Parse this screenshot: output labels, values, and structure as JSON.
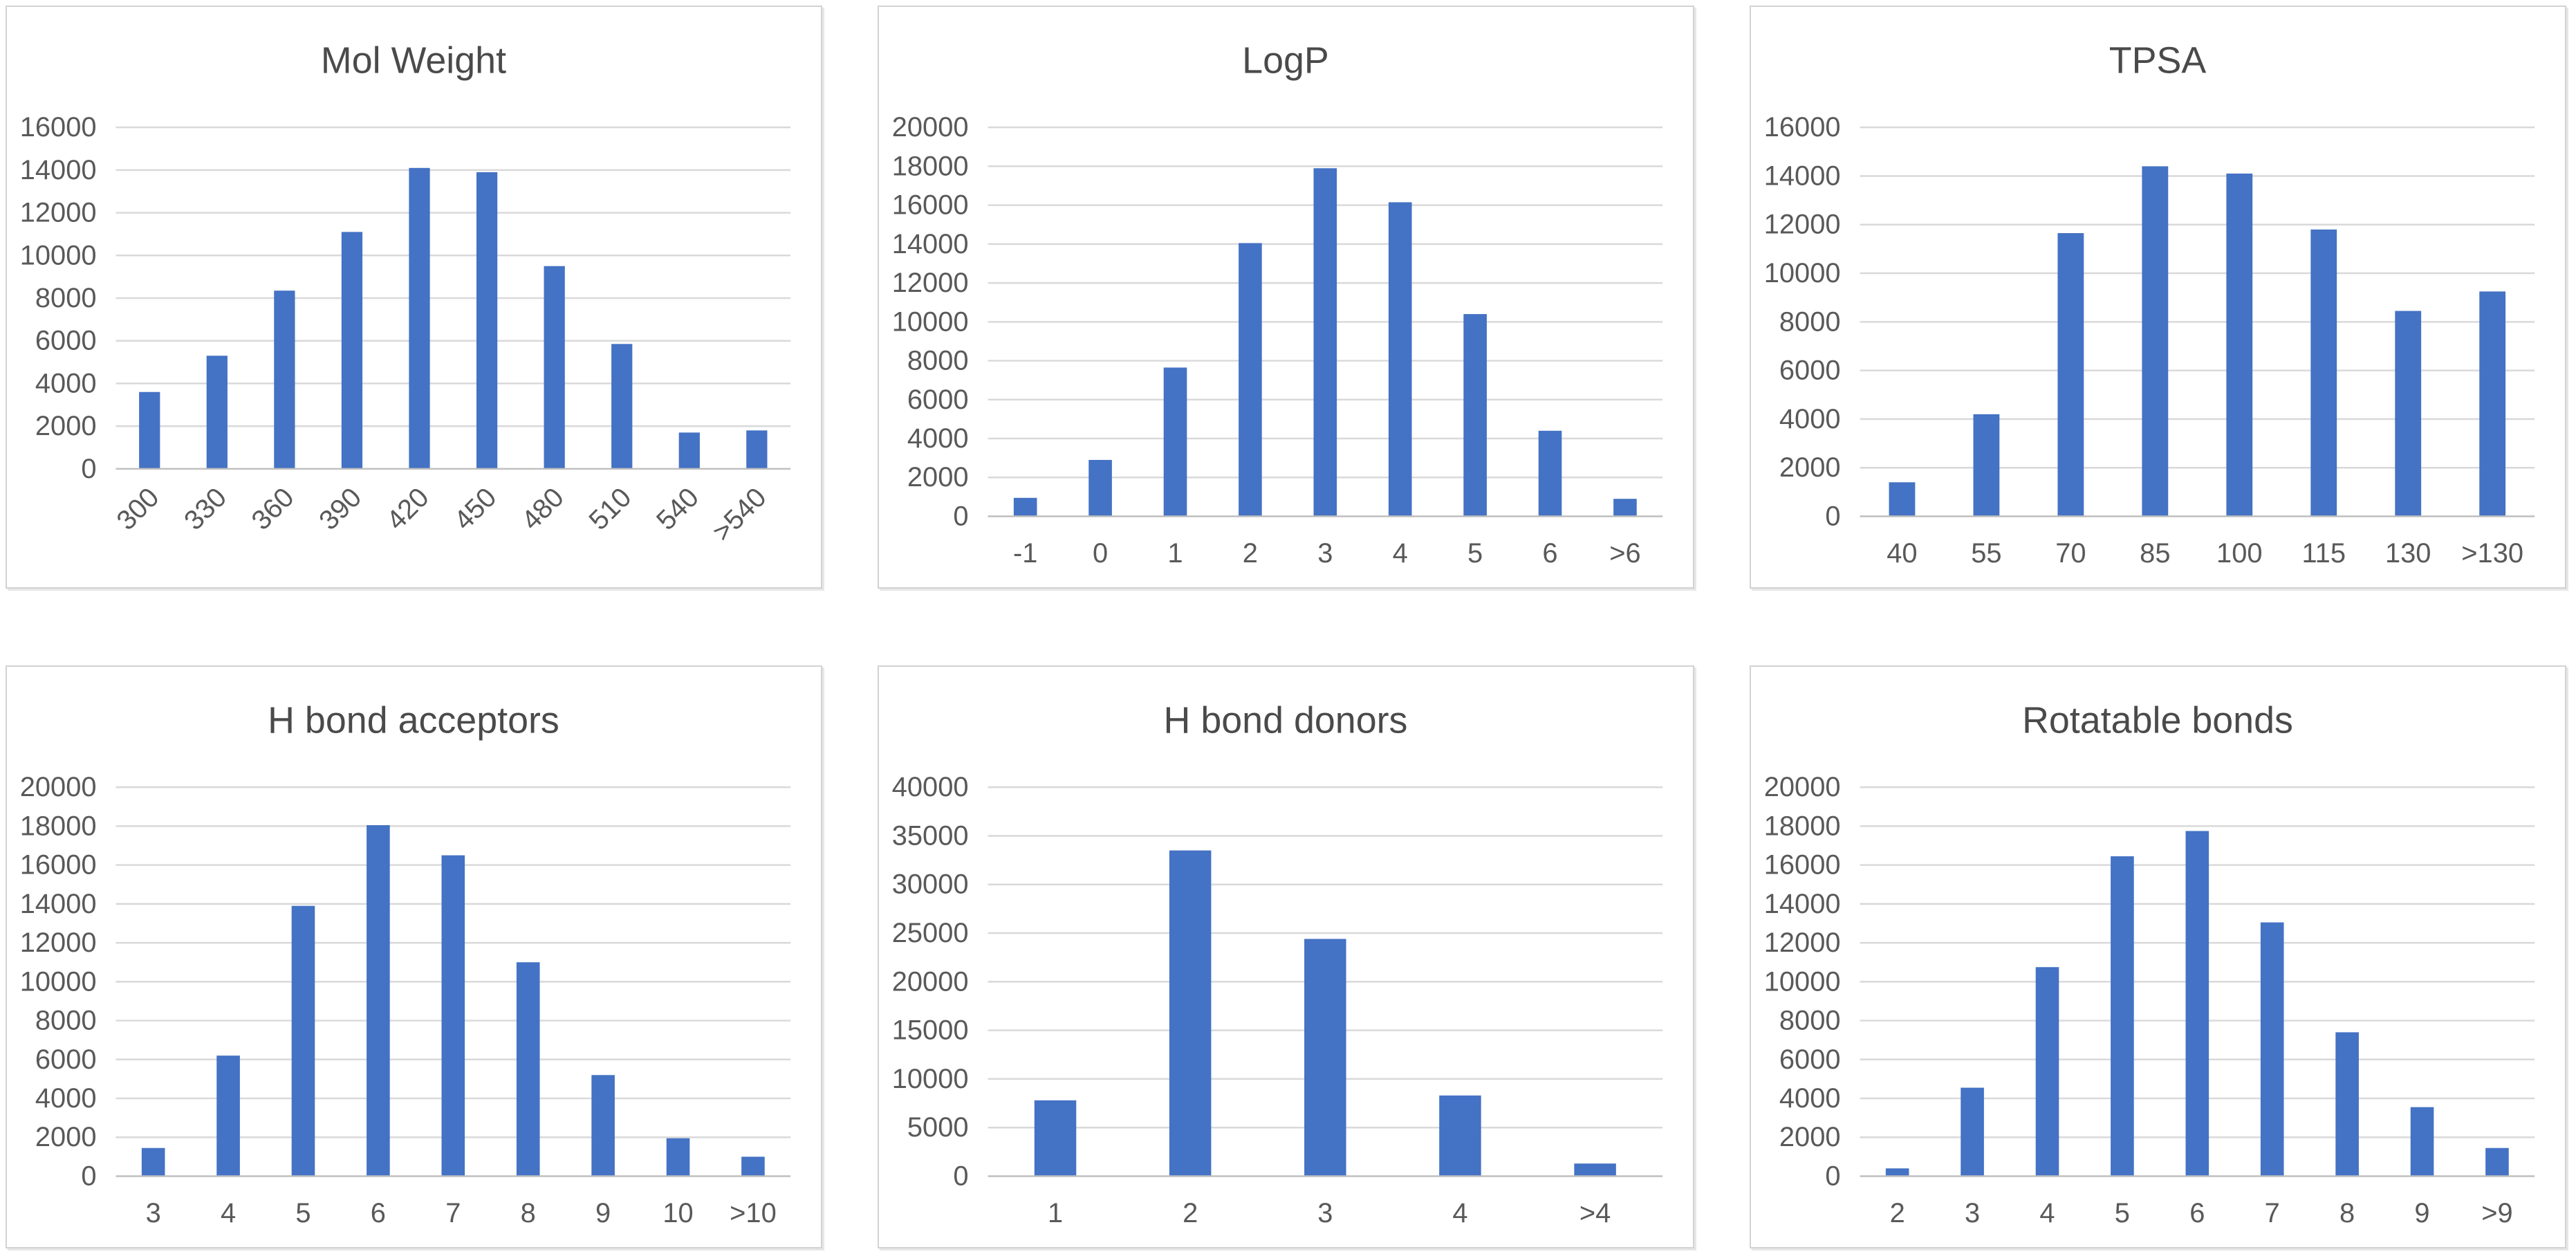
{
  "page": {
    "background": "#FFFFFF",
    "description_layout": "grid of six bar charts, 3 columns by 2 rows"
  },
  "style": {
    "bar_color": "#4472C4",
    "gridline_color": "#D9D9D9",
    "axis_line_color": "#BFBFBF",
    "tick_label_color": "#595959",
    "title_color": "#4A4A4A",
    "panel_border_color": "#D2D2D2",
    "panel_background": "#FFFFFF"
  },
  "chart_data": [
    {
      "id": "mol-weight",
      "type": "bar",
      "title": "Mol Weight",
      "categories": [
        "300",
        "330",
        "360",
        "390",
        "420",
        "450",
        "480",
        "510",
        "540",
        ">540"
      ],
      "values": [
        3600,
        5300,
        8350,
        11100,
        14100,
        13900,
        9500,
        5850,
        1700,
        1800
      ],
      "xlabel": "",
      "ylabel": "",
      "ylim": [
        0,
        16000
      ],
      "ytick_step": 2000,
      "grid": true,
      "legend": "none",
      "x_labels_rotated": true
    },
    {
      "id": "logp",
      "type": "bar",
      "title": "LogP",
      "categories": [
        "-1",
        "0",
        "1",
        "2",
        "3",
        "4",
        "5",
        "6",
        ">6"
      ],
      "values": [
        950,
        2900,
        7650,
        14050,
        17900,
        16150,
        10400,
        4400,
        900
      ],
      "xlabel": "",
      "ylabel": "",
      "ylim": [
        0,
        20000
      ],
      "ytick_step": 2000,
      "grid": true,
      "legend": "none",
      "x_labels_rotated": false
    },
    {
      "id": "tpsa",
      "type": "bar",
      "title": "TPSA",
      "categories": [
        "40",
        "55",
        "70",
        "85",
        "100",
        "115",
        "130",
        ">130"
      ],
      "values": [
        1400,
        4200,
        11650,
        14400,
        14100,
        11800,
        8450,
        9250
      ],
      "xlabel": "",
      "ylabel": "",
      "ylim": [
        0,
        16000
      ],
      "ytick_step": 2000,
      "grid": true,
      "legend": "none",
      "x_labels_rotated": false
    },
    {
      "id": "h-bond-acceptors",
      "type": "bar",
      "title": "H bond acceptors",
      "categories": [
        "3",
        "4",
        "5",
        "6",
        "7",
        "8",
        "9",
        "10",
        ">10"
      ],
      "values": [
        1450,
        6200,
        13900,
        18050,
        16500,
        11000,
        5200,
        1950,
        1000
      ],
      "xlabel": "",
      "ylabel": "",
      "ylim": [
        0,
        20000
      ],
      "ytick_step": 2000,
      "grid": true,
      "legend": "none",
      "x_labels_rotated": false
    },
    {
      "id": "h-bond-donors",
      "type": "bar",
      "title": "H bond donors",
      "categories": [
        "1",
        "2",
        "3",
        "4",
        ">4"
      ],
      "values": [
        7800,
        33500,
        24400,
        8300,
        1300
      ],
      "xlabel": "",
      "ylabel": "",
      "ylim": [
        0,
        40000
      ],
      "ytick_step": 5000,
      "grid": true,
      "legend": "none",
      "x_labels_rotated": false
    },
    {
      "id": "rotatable-bonds",
      "type": "bar",
      "title": "Rotatable bonds",
      "categories": [
        "2",
        "3",
        "4",
        "5",
        "6",
        "7",
        "8",
        "9",
        ">9"
      ],
      "values": [
        400,
        4550,
        10750,
        16450,
        17750,
        13050,
        7400,
        3550,
        1450
      ],
      "xlabel": "",
      "ylabel": "",
      "ylim": [
        0,
        20000
      ],
      "ytick_step": 2000,
      "grid": true,
      "legend": "none",
      "x_labels_rotated": false
    }
  ]
}
